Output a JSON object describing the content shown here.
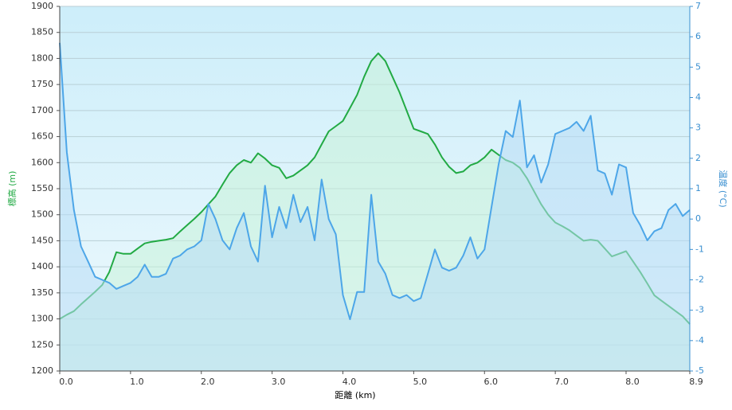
{
  "chart_data": {
    "type": "line",
    "x_label": "距離 (km)",
    "y_label": "標高 (m)",
    "y2_label": "温度 (°C)",
    "x": [
      0.0,
      0.1,
      0.2,
      0.3,
      0.4,
      0.5,
      0.6,
      0.7,
      0.8,
      0.9,
      1.0,
      1.1,
      1.2,
      1.3,
      1.4,
      1.5,
      1.6,
      1.7,
      1.8,
      1.9,
      2.0,
      2.1,
      2.2,
      2.3,
      2.4,
      2.5,
      2.6,
      2.7,
      2.8,
      2.9,
      3.0,
      3.1,
      3.2,
      3.3,
      3.4,
      3.5,
      3.6,
      3.7,
      3.8,
      3.9,
      4.0,
      4.1,
      4.2,
      4.3,
      4.4,
      4.5,
      4.6,
      4.7,
      4.8,
      4.9,
      5.0,
      5.1,
      5.2,
      5.3,
      5.4,
      5.5,
      5.6,
      5.7,
      5.8,
      5.9,
      6.0,
      6.1,
      6.2,
      6.3,
      6.4,
      6.5,
      6.6,
      6.7,
      6.8,
      6.9,
      7.0,
      7.1,
      7.2,
      7.3,
      7.4,
      7.5,
      7.6,
      7.7,
      7.8,
      7.9,
      8.0,
      8.1,
      8.2,
      8.3,
      8.4,
      8.5,
      8.6,
      8.7,
      8.8,
      8.9
    ],
    "series": [
      {
        "name": "標高",
        "color": "#22aa44",
        "fill": "#c8f2d8",
        "axis": "y",
        "values": [
          1300,
          1308,
          1315,
          1328,
          1340,
          1352,
          1365,
          1390,
          1428,
          1425,
          1425,
          1435,
          1445,
          1448,
          1450,
          1452,
          1455,
          1468,
          1480,
          1492,
          1505,
          1520,
          1535,
          1558,
          1580,
          1595,
          1605,
          1600,
          1618,
          1608,
          1595,
          1590,
          1570,
          1575,
          1585,
          1595,
          1610,
          1635,
          1660,
          1670,
          1680,
          1705,
          1730,
          1765,
          1795,
          1810,
          1795,
          1765,
          1735,
          1700,
          1665,
          1660,
          1655,
          1635,
          1610,
          1592,
          1580,
          1583,
          1595,
          1600,
          1610,
          1625,
          1615,
          1605,
          1600,
          1590,
          1570,
          1545,
          1520,
          1500,
          1485,
          1478,
          1470,
          1460,
          1450,
          1452,
          1450,
          1435,
          1420,
          1425,
          1430,
          1410,
          1390,
          1368,
          1345,
          1335,
          1325,
          1315,
          1305,
          1290
        ]
      },
      {
        "name": "温度",
        "color": "#4da6e8",
        "fill": "#b8dcf6",
        "axis": "y2",
        "values": [
          5.8,
          2.2,
          0.3,
          -0.9,
          -1.4,
          -1.9,
          -2.0,
          -2.1,
          -2.3,
          -2.2,
          -2.1,
          -1.9,
          -1.5,
          -1.9,
          -1.9,
          -1.8,
          -1.3,
          -1.2,
          -1.0,
          -0.9,
          -0.7,
          0.5,
          0,
          -0.7,
          -1.0,
          -0.3,
          0.2,
          -0.9,
          -1.4,
          1.1,
          -0.6,
          0.4,
          -0.3,
          0.8,
          -0.1,
          0.4,
          -0.7,
          1.3,
          0,
          -0.5,
          -2.5,
          -3.3,
          -2.4,
          -2.4,
          0.8,
          -1.4,
          -1.8,
          -2.5,
          -2.6,
          -2.5,
          -2.7,
          -2.6,
          -1.8,
          -1.0,
          -1.6,
          -1.7,
          -1.6,
          -1.2,
          -0.6,
          -1.3,
          -1.0,
          0.4,
          1.8,
          2.9,
          2.7,
          3.9,
          1.7,
          2.1,
          1.2,
          1.8,
          2.8,
          2.9,
          3.0,
          3.2,
          2.9,
          3.4,
          1.6,
          1.5,
          0.8,
          1.8,
          1.7,
          0.2,
          -0.2,
          -0.7,
          -0.4,
          -0.3,
          0.3,
          0.5,
          0.1,
          0.3
        ]
      }
    ],
    "xlim": [
      0,
      8.9
    ],
    "xticks": [
      {
        "value": 0,
        "label": "0.0"
      },
      {
        "value": 1,
        "label": "1.0"
      },
      {
        "value": 2,
        "label": "2.0"
      },
      {
        "value": 3,
        "label": "3.0"
      },
      {
        "value": 4,
        "label": "4.0"
      },
      {
        "value": 5,
        "label": "5.0"
      },
      {
        "value": 6,
        "label": "6.0"
      },
      {
        "value": 7,
        "label": "7.0"
      },
      {
        "value": 8,
        "label": "8.0"
      },
      8.9
    ],
    "ylim": [
      1200,
      1900
    ],
    "yticks": [
      1200,
      1250,
      1300,
      1350,
      1400,
      1450,
      1500,
      1550,
      1600,
      1650,
      1700,
      1750,
      1800,
      1850,
      1900
    ],
    "y2lim": [
      -5,
      7
    ],
    "y2ticks": [
      -5,
      -4,
      -3,
      -2,
      -1,
      0,
      1,
      2,
      3,
      4,
      5,
      6,
      7
    ],
    "grid": true
  }
}
